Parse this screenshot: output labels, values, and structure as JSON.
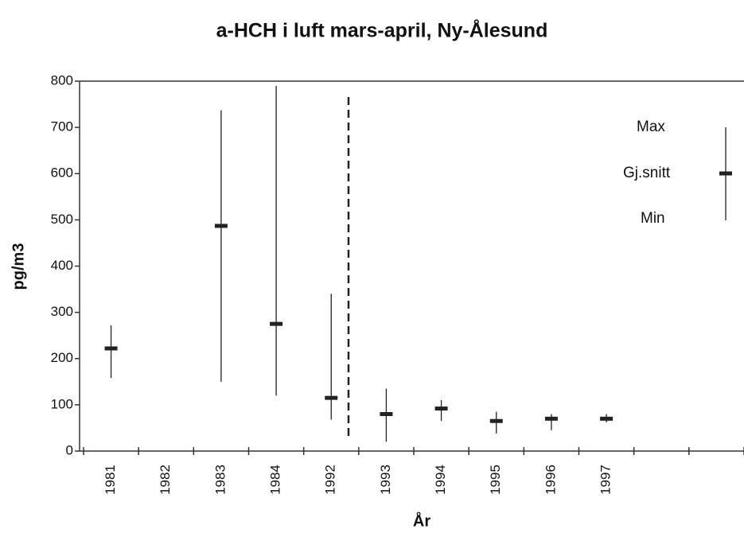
{
  "chart_data": {
    "type": "high-low-mean",
    "title": "a-HCH i luft mars-april, Ny-Ålesund",
    "x_label": "År",
    "y_label": "pg/m3",
    "categories": [
      "1981",
      "1982",
      "1983",
      "1984",
      "1992",
      "1993",
      "1994",
      "1995",
      "1996",
      "1997",
      null,
      null
    ],
    "series": [
      {
        "name": "Max",
        "color": "#222222",
        "values": [
          272,
          null,
          737,
          790,
          340,
          135,
          110,
          85,
          80,
          80,
          null,
          null
        ]
      },
      {
        "name": "Gj.snitt",
        "color": "#222222",
        "values": [
          222,
          null,
          487,
          275,
          115,
          80,
          92,
          65,
          70,
          70,
          null,
          null
        ]
      },
      {
        "name": "Min",
        "color": "#222222",
        "values": [
          158,
          null,
          150,
          120,
          68,
          20,
          65,
          38,
          45,
          62,
          null,
          null
        ]
      }
    ],
    "ylim": [
      0,
      800
    ],
    "yticks": [
      0,
      100,
      200,
      300,
      400,
      500,
      600,
      700,
      800
    ],
    "grid": false
  }
}
